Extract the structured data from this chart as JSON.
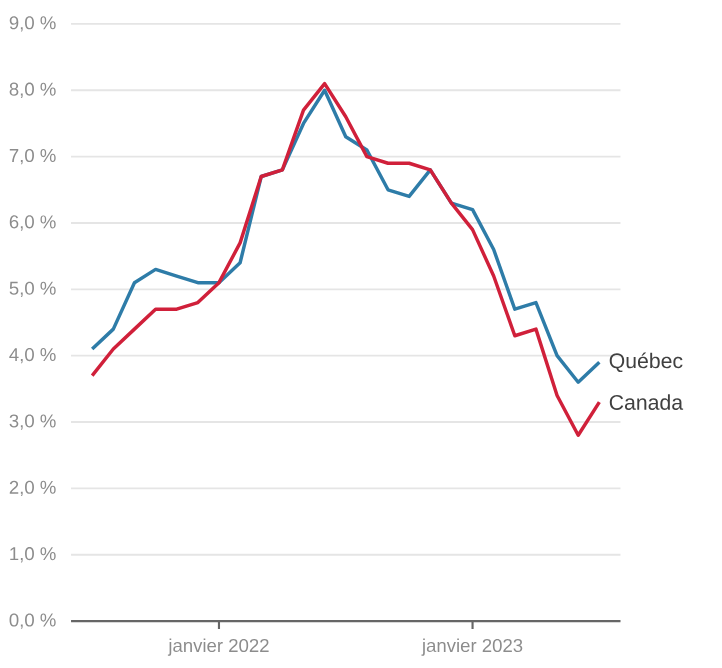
{
  "chart_data": {
    "type": "line",
    "x": [
      "2021-07",
      "2021-08",
      "2021-09",
      "2021-10",
      "2021-11",
      "2021-12",
      "2022-01",
      "2022-02",
      "2022-03",
      "2022-04",
      "2022-05",
      "2022-06",
      "2022-07",
      "2022-08",
      "2022-09",
      "2022-10",
      "2022-11",
      "2022-12",
      "2023-01",
      "2023-02",
      "2023-03",
      "2023-04",
      "2023-05",
      "2023-06",
      "2023-07"
    ],
    "series": [
      {
        "name": "Québec",
        "color": "#2e7ca8",
        "values": [
          4.1,
          4.4,
          5.1,
          5.3,
          5.2,
          5.1,
          5.1,
          5.4,
          6.7,
          6.8,
          7.5,
          8.0,
          7.3,
          7.1,
          6.5,
          6.4,
          6.8,
          6.3,
          6.2,
          5.6,
          4.7,
          4.8,
          4.0,
          3.6,
          3.9
        ]
      },
      {
        "name": "Canada",
        "color": "#d0203a",
        "values": [
          3.7,
          4.1,
          4.4,
          4.7,
          4.7,
          4.8,
          5.1,
          5.7,
          6.7,
          6.8,
          7.7,
          8.1,
          7.6,
          7.0,
          6.9,
          6.9,
          6.8,
          6.3,
          5.9,
          5.2,
          4.3,
          4.4,
          3.4,
          2.8,
          3.3
        ]
      }
    ],
    "xlim": [
      "2021-06",
      "2023-08"
    ],
    "xticks": [
      {
        "value": "2022-01",
        "label": "janvier 2022"
      },
      {
        "value": "2023-01",
        "label": "janvier 2023"
      }
    ],
    "ylim": [
      0,
      9
    ],
    "yticks": [
      {
        "value": 0,
        "label": "0,0 %"
      },
      {
        "value": 1,
        "label": "1,0 %"
      },
      {
        "value": 2,
        "label": "2,0 %"
      },
      {
        "value": 3,
        "label": "3,0 %"
      },
      {
        "value": 4,
        "label": "4,0 %"
      },
      {
        "value": 5,
        "label": "5,0 %"
      },
      {
        "value": 6,
        "label": "6,0 %"
      },
      {
        "value": 7,
        "label": "7,0 %"
      },
      {
        "value": 8,
        "label": "8,0 %"
      },
      {
        "value": 9,
        "label": "9,0 %"
      }
    ],
    "grid": "y",
    "legend": false,
    "marker": "none",
    "line_style": "solid"
  }
}
